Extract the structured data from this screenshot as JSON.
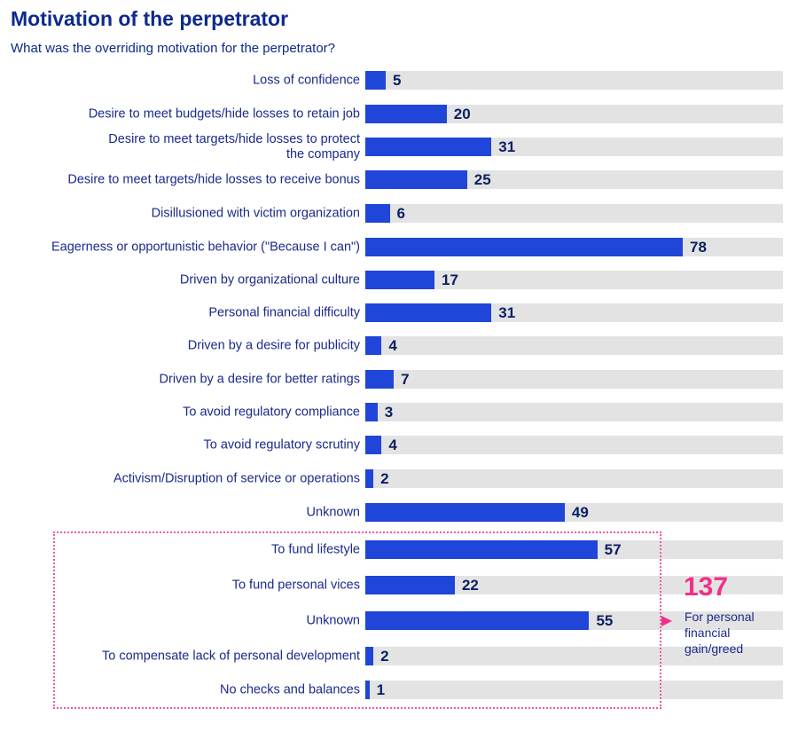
{
  "chart_data": {
    "type": "bar",
    "orientation": "horizontal",
    "title": "Motivation of the perpetrator",
    "subtitle": "What was the overriding motivation for the perpetrator?",
    "xlim": [
      0,
      100
    ],
    "grid": false,
    "categories": [
      "Loss of confidence",
      "Desire to meet budgets/hide losses to retain job",
      "Desire to meet targets/hide losses to protect the company",
      "Desire to meet targets/hide losses to receive bonus",
      "Disillusioned with victim organization",
      "Eagerness or opportunistic behavior (\"Because I can\")",
      "Driven by organizational culture",
      "Personal financial difficulty",
      "Driven by a desire for publicity",
      "Driven by a desire for better ratings",
      "To avoid regulatory compliance",
      "To avoid regulatory scrutiny",
      "Activism/Disruption of service or operations",
      "Unknown",
      "To fund lifestyle",
      "To fund personal vices",
      "Unknown",
      "To compensate lack of personal development",
      "No checks and balances"
    ],
    "values": [
      5,
      20,
      31,
      25,
      6,
      78,
      17,
      31,
      4,
      7,
      3,
      4,
      2,
      49,
      57,
      22,
      55,
      2,
      1
    ],
    "annotation": {
      "value": "137",
      "text": "For personal financial gain/greed",
      "group_indices": [
        14,
        15,
        16,
        17,
        18
      ]
    },
    "colors": {
      "bar": "#1f45d9",
      "track": "#e3e3e3",
      "value_text": "#0b1f63",
      "label_text": "#1a2a8a",
      "highlight": "#f0308a"
    }
  }
}
